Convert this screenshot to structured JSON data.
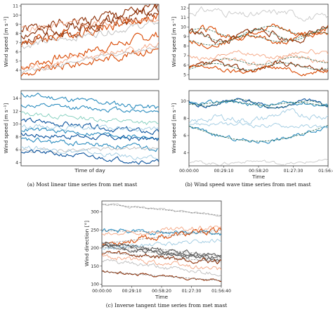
{
  "chart_data": [
    {
      "type": "line",
      "panel": "a-top",
      "ylabel": "Wind speed [m s⁻¹]",
      "xlabel": "",
      "xlim": [
        0,
        7000
      ],
      "ylim": [
        3,
        11.2
      ],
      "yticks": [
        4,
        5,
        6,
        7,
        8,
        9,
        10,
        11
      ],
      "xticks": [],
      "colors": {
        "dark": "#8c2d04",
        "mid": "#d94801",
        "light": "#f4a582",
        "grey": "#bdbdbd"
      },
      "series": [
        {
          "color": "dark",
          "start": 8.3,
          "end": 10.7,
          "noise": 0.5,
          "seed": 1
        },
        {
          "color": "dark",
          "start": 7.9,
          "end": 10.1,
          "noise": 0.45,
          "seed": 2
        },
        {
          "color": "dark",
          "start": 6.8,
          "end": 10.6,
          "noise": 0.5,
          "seed": 3
        },
        {
          "color": "mid",
          "start": 7.0,
          "end": 9.9,
          "noise": 0.45,
          "seed": 4
        },
        {
          "color": "light",
          "start": 8.5,
          "end": 9.6,
          "noise": 0.35,
          "seed": 5
        },
        {
          "color": "grey",
          "start": 6.6,
          "end": 9.2,
          "noise": 0.3,
          "seed": 6
        },
        {
          "color": "mid",
          "start": 4.4,
          "end": 7.9,
          "noise": 0.4,
          "seed": 7
        },
        {
          "color": "light",
          "start": 4.1,
          "end": 6.8,
          "noise": 0.35,
          "seed": 8
        },
        {
          "color": "mid",
          "start": 3.5,
          "end": 6.4,
          "noise": 0.35,
          "seed": 9
        },
        {
          "color": "grey",
          "start": 3.8,
          "end": 6.6,
          "noise": 0.2,
          "seed": 10
        }
      ]
    },
    {
      "type": "line",
      "panel": "a-bottom",
      "ylabel": "Wind speed [m s⁻¹]",
      "xlabel": "Time of day",
      "xlim": [
        0,
        7000
      ],
      "ylim": [
        3.5,
        15.2
      ],
      "yticks": [
        4,
        6,
        8,
        10,
        12,
        14
      ],
      "xticks": [],
      "colors": {
        "dark": "#08519c",
        "mid": "#2b8cbe",
        "light": "#7fcdbb",
        "pale": "#9ecae1",
        "grey": "#bdbdbd"
      },
      "series": [
        {
          "color": "mid",
          "start": 14.6,
          "end": 12.5,
          "noise": 0.35,
          "seed": 11
        },
        {
          "color": "mid",
          "start": 12.9,
          "end": 12.0,
          "noise": 0.3,
          "seed": 12
        },
        {
          "color": "light",
          "start": 11.7,
          "end": 10.0,
          "noise": 0.3,
          "seed": 13
        },
        {
          "color": "dark",
          "start": 10.6,
          "end": 8.6,
          "noise": 0.35,
          "seed": 14
        },
        {
          "color": "pale",
          "start": 9.7,
          "end": 9.2,
          "noise": 0.3,
          "seed": 15
        },
        {
          "color": "mid",
          "start": 9.2,
          "end": 7.9,
          "noise": 0.3,
          "seed": 16
        },
        {
          "color": "dark",
          "start": 8.4,
          "end": 7.6,
          "noise": 0.35,
          "seed": 17
        },
        {
          "color": "mid",
          "start": 7.5,
          "end": 6.2,
          "noise": 0.35,
          "seed": 18
        },
        {
          "color": "grey",
          "start": 5.8,
          "end": 6.3,
          "noise": 0.25,
          "seed": 19
        },
        {
          "color": "pale",
          "start": 6.5,
          "end": 4.5,
          "noise": 0.3,
          "seed": 20
        },
        {
          "color": "dark",
          "start": 5.8,
          "end": 4.0,
          "noise": 0.3,
          "seed": 21
        }
      ]
    },
    {
      "type": "line",
      "panel": "b-top",
      "ylabel": "Wind speed [m s⁻¹]",
      "xlabel": "",
      "xlim": [
        0,
        7000
      ],
      "ylim": [
        4.5,
        12.4
      ],
      "yticks": [
        5,
        6,
        7,
        8,
        9,
        10,
        11,
        12
      ],
      "xticks": [],
      "colors": {
        "dark": "#8c2d04",
        "mid": "#d94801",
        "light": "#f4a582",
        "grey": "#c8c8c8",
        "fit": "#2d6a4f"
      },
      "series": [
        {
          "color": "grey",
          "start": 11.6,
          "end": 11.2,
          "noise": 0.3,
          "wave": 0.25,
          "seed": 31
        },
        {
          "color": "mid",
          "start": 9.3,
          "end": 9.8,
          "noise": 0.3,
          "wave": 0.5,
          "seed": 32,
          "fit": true
        },
        {
          "color": "dark",
          "start": 9.0,
          "end": 9.3,
          "noise": 0.3,
          "wave": 0.6,
          "seed": 33,
          "fit": true
        },
        {
          "color": "mid",
          "start": 8.4,
          "end": 9.1,
          "noise": 0.25,
          "wave": 0.4,
          "seed": 34,
          "fit": true
        },
        {
          "color": "light",
          "start": 7.0,
          "end": 7.2,
          "noise": 0.2,
          "wave": 0.3,
          "seed": 35
        },
        {
          "color": "light",
          "start": 6.2,
          "end": 6.6,
          "noise": 0.25,
          "wave": 0.35,
          "seed": 36,
          "fit": true
        },
        {
          "color": "dark",
          "start": 5.8,
          "end": 5.9,
          "noise": 0.25,
          "wave": 0.35,
          "seed": 37,
          "fit": true
        },
        {
          "color": "mid",
          "start": 5.6,
          "end": 5.4,
          "noise": 0.2,
          "wave": 0.25,
          "seed": 38
        }
      ]
    },
    {
      "type": "line",
      "panel": "b-bottom",
      "ylabel": "Wind speed [m s⁻¹]",
      "xlabel": "Time",
      "xlim": [
        0,
        7000
      ],
      "ylim": [
        2.5,
        11.2
      ],
      "yticks": [
        4,
        6,
        8,
        10
      ],
      "xticks": [
        "00:00:00",
        "00:29:10",
        "00:58:20",
        "01:27:30",
        "01:56:40"
      ],
      "xtick_values": [
        0,
        1750,
        3500,
        5250,
        7000
      ],
      "colors": {
        "dark": "#08519c",
        "mid": "#2b8cbe",
        "pale": "#9ecae1",
        "grey": "#c8c8c8",
        "fit": "#2d6a4f"
      },
      "series": [
        {
          "color": "dark",
          "start": 9.9,
          "end": 9.5,
          "noise": 0.2,
          "wave": 0.45,
          "seed": 41,
          "fit": true
        },
        {
          "color": "mid",
          "start": 9.8,
          "end": 9.6,
          "noise": 0.2,
          "wave": 0.2,
          "seed": 42,
          "fit": true
        },
        {
          "color": "pale",
          "start": 7.6,
          "end": 8.6,
          "noise": 0.3,
          "wave": 0.3,
          "seed": 43
        },
        {
          "color": "mid",
          "start": 7.1,
          "end": 7.2,
          "noise": 0.2,
          "dip": 1.8,
          "seed": 44,
          "fit": true
        },
        {
          "color": "pale",
          "start": 7.4,
          "end": 7.0,
          "noise": 0.2,
          "seed": 45
        },
        {
          "color": "grey",
          "start": 2.9,
          "end": 2.9,
          "noise": 0.15,
          "wave": 0.15,
          "seed": 46
        }
      ]
    },
    {
      "type": "line",
      "panel": "c",
      "ylabel": "Wind direction [°]",
      "xlabel": "Time",
      "xlim": [
        0,
        7000
      ],
      "ylim": [
        95,
        330
      ],
      "yticks": [
        100,
        150,
        200,
        250,
        300
      ],
      "xticks": [
        "00:00:00",
        "00:29:10",
        "00:58:20",
        "01:27:30",
        "01:56:40"
      ],
      "xtick_values": [
        0,
        1750,
        3500,
        5250,
        7000
      ],
      "colors": {
        "dark": "#8c2d04",
        "mid": "#d94801",
        "light": "#f4a582",
        "blue": "#2b8cbe",
        "pale": "#9ecae1",
        "greyd": "#555555",
        "grey": "#bdbdbd"
      },
      "series": [
        {
          "color": "grey",
          "start": 322,
          "end": 290,
          "noise": 3,
          "seed": 51,
          "fit": true
        },
        {
          "color": "blue",
          "start": 248,
          "end": 240,
          "noise": 5,
          "seed": 52,
          "fit": true
        },
        {
          "color": "mid",
          "start": 212,
          "end": 250,
          "noise": 7,
          "seed": 53,
          "fit": true
        },
        {
          "color": "light",
          "start": 235,
          "end": 258,
          "noise": 6,
          "seed": 54
        },
        {
          "color": "greyd",
          "start": 214,
          "end": 178,
          "noise": 5,
          "seed": 55,
          "fit": true
        },
        {
          "color": "greyd",
          "start": 208,
          "end": 172,
          "noise": 5,
          "seed": 56,
          "fit": true
        },
        {
          "color": "greyd",
          "start": 202,
          "end": 168,
          "noise": 5,
          "seed": 57,
          "fit": true
        },
        {
          "color": "pale",
          "start": 198,
          "end": 222,
          "noise": 5,
          "seed": 58
        },
        {
          "color": "dark",
          "start": 188,
          "end": 162,
          "noise": 6,
          "seed": 59,
          "fit": true
        },
        {
          "color": "light",
          "start": 178,
          "end": 140,
          "noise": 6,
          "seed": 60
        },
        {
          "color": "grey",
          "start": 165,
          "end": 128,
          "noise": 5,
          "seed": 61
        },
        {
          "color": "dark",
          "start": 135,
          "end": 110,
          "noise": 3,
          "seed": 62,
          "fit": true
        }
      ]
    }
  ],
  "captions": {
    "a": "(a) Most linear time series from met mast",
    "b": "(b) Wind speed wave time series from met mast",
    "c": "(c) Inverse tangent time series from met mast"
  }
}
